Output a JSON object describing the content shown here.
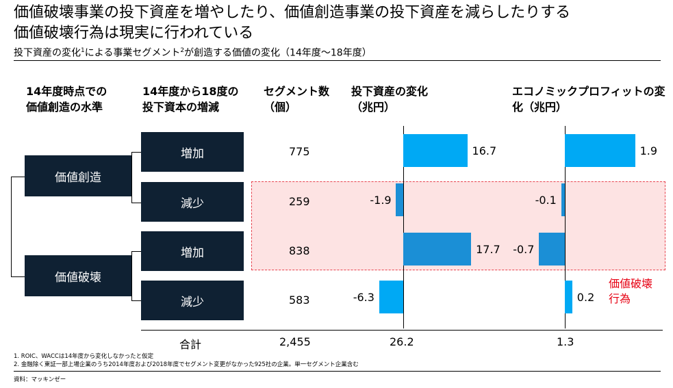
{
  "title_line1": "価値破壊事業の投下資産を増やしたり、価値創造事業の投下資産を減らしたりする",
  "title_line2": "価値破壊行為は現実に行われている",
  "subtitle_pre": "投下資産の変化",
  "subtitle_sup1": "1",
  "subtitle_mid": "による事業セグメント",
  "subtitle_sup2": "2",
  "subtitle_post": "が創造する価値の変化（14年度～18年度）",
  "headers": {
    "level_line1": "14年度時点での",
    "level_line2": "価値創造の水準",
    "change_line1": "14年度から18度の",
    "change_line2": "投下資本の増減",
    "count_line1": "セグメント数",
    "count_line2": "（個）",
    "invest_line1": "投下資産の変化",
    "invest_line2": "（兆円）",
    "ep_line1": "エコノミックプロフィットの変",
    "ep_line2": "化（兆円）"
  },
  "groups": [
    "価値創造",
    "価値破壊"
  ],
  "chart_data": {
    "type": "bar",
    "categories": [
      "価値創造・増加",
      "価値創造・減少",
      "価値破壊・増加",
      "価値破壊・減少"
    ],
    "group_labels": [
      "価値創造",
      "価値創造",
      "価値破壊",
      "価値破壊"
    ],
    "change_labels": [
      "増加",
      "減少",
      "増加",
      "減少"
    ],
    "segment_counts": [
      "775",
      "259",
      "838",
      "583"
    ],
    "series": [
      {
        "values": [
          16.7,
          -1.9,
          17.7,
          -6.3
        ],
        "labels": [
          "16.7",
          "-1.9",
          "17.7",
          "-6.3"
        ]
      },
      {
        "values": [
          1.9,
          -0.1,
          -0.7,
          0.2
        ],
        "labels": [
          "1.9",
          "-0.1",
          "-0.7",
          "0.2"
        ]
      }
    ],
    "highlight_categories": [
      1,
      2
    ],
    "highlight_label_line1": "価値破壊",
    "highlight_label_line2": "行為",
    "totals": {
      "label": "合計",
      "segments": "2,455",
      "invest": "26.2",
      "ep": "1.3"
    }
  },
  "colors": {
    "box": "#0f2133",
    "bar": "#00a9f4",
    "bar_dark": "#1b8fd6",
    "highlight": "#fde3e3",
    "accent_red": "#e60012"
  },
  "footnotes": [
    "1.    ROIC、WACCは14年度から変化しなかったと仮定",
    "2.    金融除く東証一部上場企業のうち2014年度および2018年度でセグメント変更がなかった925社の企業。単一セグメント企業含む"
  ],
  "source": "資料：マッキンゼー"
}
